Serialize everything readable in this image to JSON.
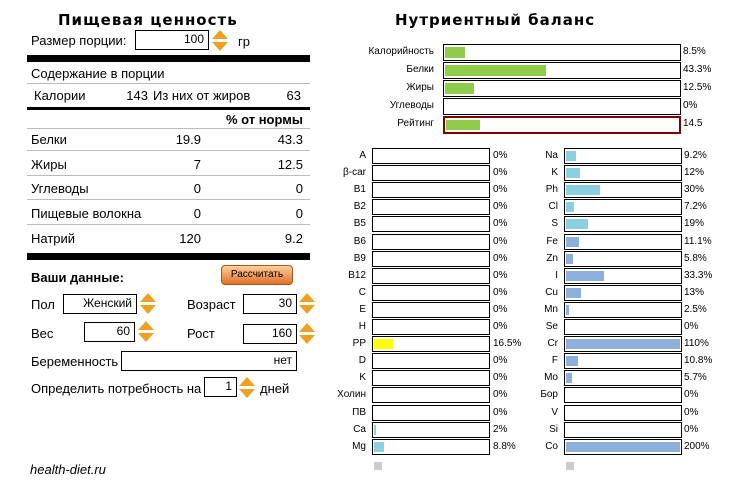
{
  "nutrition": {
    "title": "Пищевая ценность",
    "portion_label": "Размер порции:",
    "portion_value": "100",
    "portion_unit": "гр",
    "content_heading": "Содержание в порции",
    "calories_label": "Калории",
    "calories_value": "143",
    "fat_calories_label": "Из них от жиров",
    "fat_calories_value": "63",
    "norm_heading": "% от нормы",
    "rows": [
      {
        "label": "Белки",
        "value": "19.9",
        "pct": "43.3"
      },
      {
        "label": "Жиры",
        "value": "7",
        "pct": "12.5"
      },
      {
        "label": "Углеводы",
        "value": "0",
        "pct": "0"
      },
      {
        "label": "Пищевые волокна",
        "value": "0",
        "pct": "0"
      },
      {
        "label": "Натрий",
        "value": "120",
        "pct": "9.2"
      }
    ]
  },
  "user": {
    "heading": "Ваши данные:",
    "calc_button": "Рассчитать",
    "sex_label": "Пол",
    "sex_value": "Женский",
    "age_label": "Возраст",
    "age_value": "30",
    "weight_label": "Вес",
    "weight_value": "60",
    "height_label": "Рост",
    "height_value": "160",
    "pregnancy_label": "Беременность",
    "pregnancy_value": "нет",
    "days_label": "Определить потребность на",
    "days_value": "1",
    "days_unit": "дней"
  },
  "balance": {
    "title": "Нутриентный баланс",
    "summary": [
      {
        "label": "Калорийность",
        "text": "8.5%",
        "value": 8.5,
        "color": "#8fcc4a"
      },
      {
        "label": "Белки",
        "text": "43.3%",
        "value": 43.3,
        "color": "#8fcc4a"
      },
      {
        "label": "Жиры",
        "text": "12.5%",
        "value": 12.5,
        "color": "#8fcc4a"
      },
      {
        "label": "Углеводы",
        "text": "0%",
        "value": 0,
        "color": "#8fcc4a"
      }
    ],
    "rating": {
      "label": "Рейтинг",
      "text": "14.5",
      "value": 14.5,
      "color": "#8fcc4a",
      "border": "#800000"
    },
    "vitamins": [
      {
        "label": "A",
        "text": "0%",
        "value": 0
      },
      {
        "label": "β-car",
        "text": "0%",
        "value": 0
      },
      {
        "label": "B1",
        "text": "0%",
        "value": 0
      },
      {
        "label": "B2",
        "text": "0%",
        "value": 0
      },
      {
        "label": "B5",
        "text": "0%",
        "value": 0
      },
      {
        "label": "B6",
        "text": "0%",
        "value": 0
      },
      {
        "label": "B9",
        "text": "0%",
        "value": 0
      },
      {
        "label": "B12",
        "text": "0%",
        "value": 0
      },
      {
        "label": "C",
        "text": "0%",
        "value": 0
      },
      {
        "label": "E",
        "text": "0%",
        "value": 0
      },
      {
        "label": "H",
        "text": "0%",
        "value": 0
      },
      {
        "label": "PP",
        "text": "16.5%",
        "value": 16.5,
        "color": "#ffff00"
      },
      {
        "label": "D",
        "text": "0%",
        "value": 0
      },
      {
        "label": "K",
        "text": "0%",
        "value": 0
      },
      {
        "label": "Холин",
        "text": "0%",
        "value": 0
      },
      {
        "label": "ПВ",
        "text": "0%",
        "value": 0
      },
      {
        "label": "Ca",
        "text": "2%",
        "value": 2
      },
      {
        "label": "Mg",
        "text": "8.8%",
        "value": 8.8
      }
    ],
    "minerals": [
      {
        "label": "Na",
        "text": "9.2%",
        "value": 9.2
      },
      {
        "label": "K",
        "text": "12%",
        "value": 12
      },
      {
        "label": "Ph",
        "text": "30%",
        "value": 30
      },
      {
        "label": "Cl",
        "text": "7.2%",
        "value": 7.2
      },
      {
        "label": "S",
        "text": "19%",
        "value": 19
      },
      {
        "label": "Fe",
        "text": "11.1%",
        "value": 11.1,
        "color": "#8eaedc"
      },
      {
        "label": "Zn",
        "text": "5.8%",
        "value": 5.8,
        "color": "#8eaedc"
      },
      {
        "label": "I",
        "text": "33.3%",
        "value": 33.3,
        "color": "#8eaedc"
      },
      {
        "label": "Cu",
        "text": "13%",
        "value": 13,
        "color": "#8eaedc"
      },
      {
        "label": "Mn",
        "text": "2.5%",
        "value": 2.5,
        "color": "#8eaedc"
      },
      {
        "label": "Se",
        "text": "0%",
        "value": 0,
        "color": "#8eaedc"
      },
      {
        "label": "Cr",
        "text": "110%",
        "value": 110,
        "color": "#8eaedc"
      },
      {
        "label": "F",
        "text": "10.8%",
        "value": 10.8,
        "color": "#8eaedc"
      },
      {
        "label": "Mo",
        "text": "5.7%",
        "value": 5.7,
        "color": "#8eaedc"
      },
      {
        "label": "Бор",
        "text": "0%",
        "value": 0,
        "color": "#8eaedc"
      },
      {
        "label": "V",
        "text": "0%",
        "value": 0,
        "color": "#8eaedc"
      },
      {
        "label": "Si",
        "text": "0%",
        "value": 0,
        "color": "#8eaedc"
      },
      {
        "label": "Co",
        "text": "200%",
        "value": 200,
        "color": "#8eaedc"
      }
    ],
    "default_color": "#8ccfdf"
  },
  "footer": {
    "logo": "health-diet.ru"
  }
}
